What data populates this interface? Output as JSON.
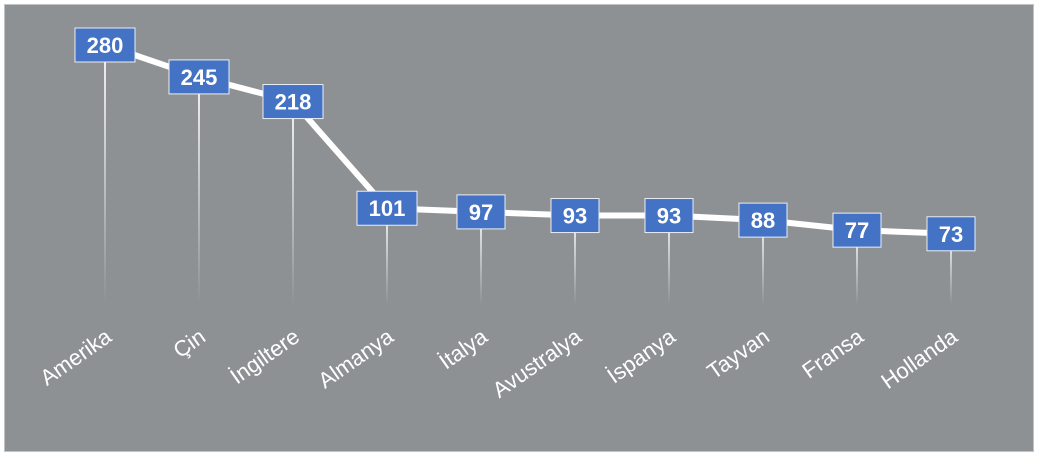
{
  "chart_data": {
    "type": "line",
    "categories": [
      "Amerika",
      "Çin",
      "İngiltere",
      "Almanya",
      "İtalya",
      "Avustralya",
      "İspanya",
      "Tayvan",
      "Fransa",
      "Hollanda"
    ],
    "values": [
      280,
      245,
      218,
      101,
      97,
      93,
      93,
      88,
      77,
      73
    ],
    "data_labels": [
      "280",
      "245",
      "218",
      "101",
      "97",
      "93",
      "93",
      "88",
      "77",
      "73"
    ],
    "title": "",
    "xlabel": "",
    "ylabel": "",
    "ylim": [
      0,
      300
    ],
    "grid": false,
    "legend": "none",
    "colors": {
      "background": "#8e9193",
      "line": "#ffffff",
      "marker": "#4472c4",
      "drop_line": "#ffffff",
      "label_text": "#ffffff"
    }
  }
}
